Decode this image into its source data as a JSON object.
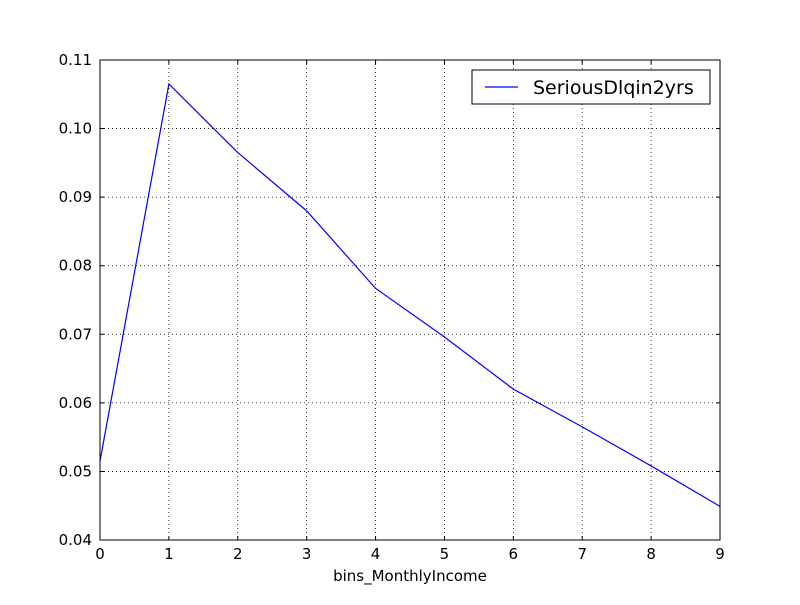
{
  "chart_data": {
    "type": "line",
    "title": "",
    "xlabel": "bins_MonthlyIncome",
    "ylabel": "",
    "x": [
      0,
      1,
      2,
      3,
      4,
      5,
      6,
      7,
      8,
      9
    ],
    "series": [
      {
        "name": "SeriousDlqin2yrs",
        "color": "#0000ff",
        "values": [
          0.0515,
          0.1065,
          0.0965,
          0.088,
          0.0767,
          0.0696,
          0.062,
          0.0565,
          0.0508,
          0.0449
        ]
      }
    ],
    "xlim": [
      0,
      9
    ],
    "ylim": [
      0.04,
      0.11
    ],
    "xticks": [
      "0",
      "1",
      "2",
      "3",
      "4",
      "5",
      "6",
      "7",
      "8",
      "9"
    ],
    "yticks": [
      "0.04",
      "0.05",
      "0.06",
      "0.07",
      "0.08",
      "0.09",
      "0.10",
      "0.11"
    ],
    "grid": true,
    "legend_position": "top-right"
  }
}
